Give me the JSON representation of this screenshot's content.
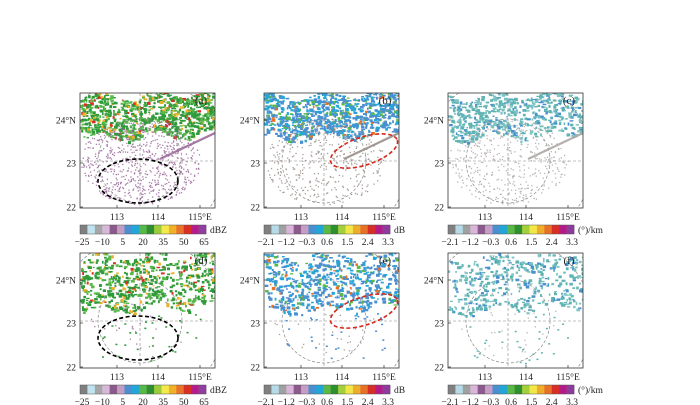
{
  "figure": {
    "longitude_ticks": [
      "113",
      "114",
      "115°E"
    ],
    "latitude_ticks": [
      "24°N",
      "23",
      "22"
    ],
    "panels": [
      {
        "label": "(a)",
        "field": "reflectivity",
        "ellipse": "black"
      },
      {
        "label": "(b)",
        "field": "zdr",
        "ellipse": "red"
      },
      {
        "label": "(c)",
        "field": "kdp",
        "ellipse": "none"
      },
      {
        "label": "(d)",
        "field": "reflectivity",
        "ellipse": "black"
      },
      {
        "label": "(e)",
        "field": "zdr",
        "ellipse": "red"
      },
      {
        "label": "(f)",
        "field": "kdp",
        "ellipse": "none"
      }
    ],
    "colorbars": {
      "reflectivity": {
        "unit": "dBZ",
        "ticks": [
          "−25",
          "−10",
          "5",
          "20",
          "35",
          "50",
          "65"
        ],
        "colors": [
          "#7f7f7f",
          "#bfe4ef",
          "#a6a6a6",
          "#d8b8d8",
          "#8a5a8a",
          "#c29cc2",
          "#4a8fd0",
          "#23a7d8",
          "#58b84a",
          "#2f8f2f",
          "#9ccc3c",
          "#f4e84a",
          "#f0b02a",
          "#e8732a",
          "#d73026",
          "#b41d8a",
          "#8f3d9f"
        ]
      },
      "zdr": {
        "unit": "dB",
        "ticks": [
          "−2.1",
          "−1.2",
          "−0.3",
          "0.6",
          "1.5",
          "2.4",
          "3.3"
        ],
        "colors": [
          "#808080",
          "#b5dce6",
          "#9fa0a0",
          "#d9b5d9",
          "#8c5a8c",
          "#c59dc5",
          "#4a8fd0",
          "#22a6d6",
          "#5bb847",
          "#2d8f2d",
          "#a3cf3a",
          "#f3e649",
          "#eeae2b",
          "#e77129",
          "#d62f27",
          "#b31c87",
          "#8e3b9e"
        ]
      },
      "kdp": {
        "unit": "(°)/km",
        "ticks": [
          "−2.1",
          "−1.2",
          "−0.3",
          "0.6",
          "1.5",
          "2.4",
          "3.3"
        ],
        "colors": [
          "#808080",
          "#b5dce6",
          "#9fa0a0",
          "#d9b5d9",
          "#8c5a8c",
          "#c59dc5",
          "#4a8fd0",
          "#22a6d6",
          "#5bb847",
          "#2d8f2d",
          "#a3cf3a",
          "#f3e649",
          "#eeae2b",
          "#e77129",
          "#d62f27",
          "#b31c87",
          "#8e3b9e"
        ]
      }
    },
    "field_colors": {
      "reflectivity": {
        "primary": "#2f9a3a",
        "secondary": "#58b84a",
        "accent": "#f0b02a",
        "hot": "#d73026",
        "clutter": "#9a6a9a"
      },
      "zdr": {
        "primary": "#4a8fd0",
        "secondary": "#23a7d8",
        "accent": "#5bb847",
        "hot": "#e77129",
        "clutter": "#9a8f8a"
      },
      "kdp": {
        "primary": "#5fb3b3",
        "secondary": "#7fc4c4",
        "accent": "#4a8fd0",
        "hot": "#d62f27",
        "clutter": "#b0a8a8"
      }
    }
  }
}
